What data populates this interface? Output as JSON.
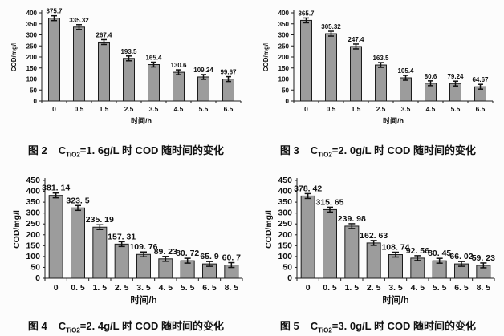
{
  "page": {
    "background": "#fcfcfc"
  },
  "style": {
    "bar_fill": "#9c9c9c",
    "bar_stroke": "#1c1c1c",
    "axis_color": "#1c1c1c",
    "text_color": "#111111",
    "error_bar_color": "#111111"
  },
  "figures": [
    {
      "caption": {
        "fig": "图 2",
        "c": "C",
        "sub": "TiO2",
        "rest": "=1. 6g/L 时 COD 随时间的变化"
      }
    },
    {
      "caption": {
        "fig": "图 3",
        "c": "C",
        "sub": "TiO2",
        "rest": "=2. 0g/L 时 COD 随时间的变化"
      }
    },
    {
      "caption": {
        "fig": "图 4",
        "c": "C",
        "sub": "TiO2",
        "rest": "=2. 4g/L 时 COD 随时间的变化"
      }
    },
    {
      "caption": {
        "fig": "图 5",
        "c": "C",
        "sub": "TiO2",
        "rest": "=3. 0g/L 时 COD 随时间的变化"
      }
    }
  ],
  "chart_data": [
    {
      "type": "bar",
      "title": "图 2 CTiO2=1.6g/L 时 COD 随时间的变化",
      "categories": [
        "0",
        "0.5",
        "1.5",
        "2.5",
        "3.5",
        "4.5",
        "5.5",
        "6.5"
      ],
      "values": [
        375.7,
        335.32,
        267.4,
        193.5,
        165.4,
        130.6,
        109.24,
        99.67
      ],
      "value_labels": [
        "375.7",
        "335.32",
        "267.4",
        "193.5",
        "165.4",
        "130.6",
        "109.24",
        "99.67"
      ],
      "xlabel": "时间/h",
      "ylabel": "COD/mg/l",
      "ylim": [
        0,
        400
      ],
      "ytick_step": 50,
      "error_bars": true,
      "grid": false,
      "legend": "none"
    },
    {
      "type": "bar",
      "title": "图 3 CTiO2=2.0g/L 时 COD 随时间的变化",
      "categories": [
        "0",
        "0.5",
        "1.5",
        "2.5",
        "3.5",
        "4.5",
        "5.5",
        "6.5"
      ],
      "values": [
        365.7,
        305.32,
        247.4,
        163.5,
        105.4,
        80.6,
        79.24,
        64.67
      ],
      "value_labels": [
        "365.7",
        "305.32",
        "247.4",
        "163.5",
        "105.4",
        "80.6",
        "79.24",
        "64.67"
      ],
      "xlabel": "时间/h",
      "ylabel": "COD/mg/l",
      "ylim": [
        0,
        400
      ],
      "ytick_step": 50,
      "error_bars": true,
      "grid": false,
      "legend": "none"
    },
    {
      "type": "bar",
      "title": "图 4 CTiO2=2.4g/L 时 COD 随时间的变化",
      "categories": [
        "0",
        "0. 5",
        "1. 5",
        "2. 5",
        "3. 5",
        "4. 5",
        "5. 5",
        "6. 5",
        "8. 5"
      ],
      "values": [
        381.14,
        323.5,
        235.19,
        157.31,
        109.76,
        89.23,
        80.72,
        65.9,
        60.7
      ],
      "value_labels": [
        "381. 14",
        "323. 5",
        "235. 19",
        "157. 31",
        "109. 76",
        "89. 23",
        "80. 72",
        "65. 9",
        "60. 7"
      ],
      "xlabel": "时间/h",
      "ylabel": "COD/mg/l",
      "ylim": [
        0,
        450
      ],
      "ytick_step": 50,
      "error_bars": true,
      "grid": false,
      "legend": "none"
    },
    {
      "type": "bar",
      "title": "图 5 CTiO2=3.0g/L 时 COD 随时间的变化",
      "categories": [
        "0",
        "0. 5",
        "1. 5",
        "2. 5",
        "3. 5",
        "4. 5",
        "5. 5",
        "6. 5",
        "8. 5"
      ],
      "values": [
        378.42,
        315.65,
        239.98,
        162.63,
        108.74,
        92.56,
        80.45,
        66.02,
        59.23
      ],
      "value_labels": [
        "378. 42",
        "315. 65",
        "239. 98",
        "162. 63",
        "108. 74",
        "92. 56",
        "80. 45",
        "66. 02",
        "59. 23"
      ],
      "xlabel": "时间/h",
      "ylabel": "COD/mg/l",
      "ylim": [
        0,
        450
      ],
      "ytick_step": 50,
      "error_bars": true,
      "grid": false,
      "legend": "none"
    }
  ]
}
